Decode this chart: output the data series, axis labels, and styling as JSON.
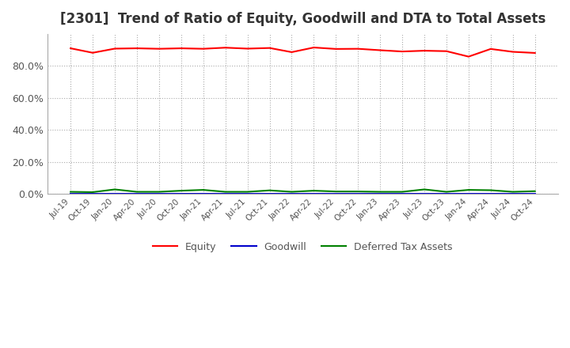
{
  "title": "[2301]  Trend of Ratio of Equity, Goodwill and DTA to Total Assets",
  "title_fontsize": 12,
  "background_color": "#ffffff",
  "grid_color": "#aaaaaa",
  "x_labels": [
    "Jul-19",
    "Oct-19",
    "Jan-20",
    "Apr-20",
    "Jul-20",
    "Oct-20",
    "Jan-21",
    "Apr-21",
    "Jul-21",
    "Oct-21",
    "Jan-22",
    "Apr-22",
    "Jul-22",
    "Oct-22",
    "Jan-23",
    "Apr-23",
    "Jul-23",
    "Oct-23",
    "Jan-24",
    "Apr-24",
    "Jul-24",
    "Oct-24"
  ],
  "equity": [
    0.91,
    0.882,
    0.908,
    0.91,
    0.907,
    0.91,
    0.907,
    0.914,
    0.908,
    0.912,
    0.886,
    0.915,
    0.906,
    0.907,
    0.898,
    0.89,
    0.895,
    0.892,
    0.858,
    0.906,
    0.888,
    0.881
  ],
  "goodwill": [
    0.0,
    0.0,
    0.0,
    0.0,
    0.0,
    0.0,
    0.0,
    0.0,
    0.0,
    0.0,
    0.0,
    0.0,
    0.0,
    0.0,
    0.0,
    0.0,
    0.0,
    0.0,
    0.0,
    0.0,
    0.0,
    0.0
  ],
  "dta": [
    0.012,
    0.01,
    0.027,
    0.012,
    0.012,
    0.019,
    0.024,
    0.012,
    0.012,
    0.021,
    0.012,
    0.019,
    0.014,
    0.014,
    0.012,
    0.012,
    0.027,
    0.012,
    0.024,
    0.022,
    0.012,
    0.016
  ],
  "equity_color": "#ff0000",
  "goodwill_color": "#0000cc",
  "dta_color": "#008000",
  "ylim": [
    0,
    1.0
  ],
  "yticks": [
    0.0,
    0.2,
    0.4,
    0.6,
    0.8
  ],
  "legend_labels": [
    "Equity",
    "Goodwill",
    "Deferred Tax Assets"
  ]
}
